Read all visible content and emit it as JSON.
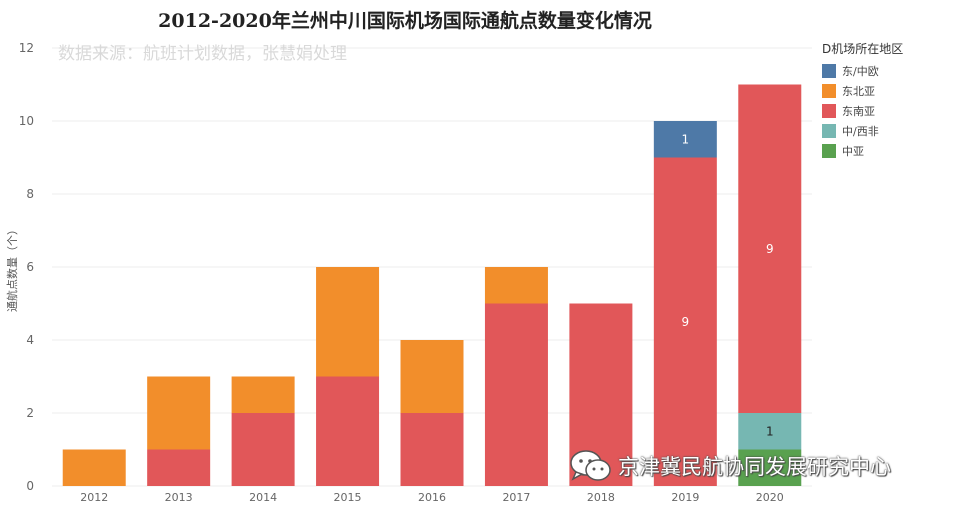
{
  "chart_data": {
    "type": "bar",
    "stacked": true,
    "title": "2012-2020年兰州中川国际机场国际通航点数量变化情况",
    "subtitle": "数据来源：航班计划数据，张慧娟处理",
    "xlabel": "",
    "ylabel": "通航点数量（个）",
    "ylim": [
      0,
      12
    ],
    "yticks": [
      0,
      2,
      4,
      6,
      8,
      10,
      12
    ],
    "grid": true,
    "legend_title": "D机场所在地区",
    "legend_position": "right",
    "categories": [
      "2012",
      "2013",
      "2014",
      "2015",
      "2016",
      "2017",
      "2018",
      "2019",
      "2020"
    ],
    "series": [
      {
        "name": "中亚",
        "color": "#59a14f",
        "values": [
          0,
          0,
          0,
          0,
          0,
          0,
          0,
          0,
          1
        ]
      },
      {
        "name": "中/西非",
        "color": "#76b7b2",
        "values": [
          0,
          0,
          0,
          0,
          0,
          0,
          0,
          0,
          1
        ]
      },
      {
        "name": "东南亚",
        "color": "#e15759",
        "values": [
          0,
          1,
          2,
          3,
          2,
          5,
          5,
          9,
          9
        ]
      },
      {
        "name": "东北亚",
        "color": "#f28e2b",
        "values": [
          1,
          2,
          1,
          3,
          2,
          1,
          0,
          0,
          0
        ]
      },
      {
        "name": "东/中欧",
        "color": "#4e79a7",
        "values": [
          0,
          0,
          0,
          0,
          0,
          0,
          0,
          1,
          0
        ]
      }
    ],
    "legend_order": [
      "东/中欧",
      "东北亚",
      "东南亚",
      "中/西非",
      "中亚"
    ],
    "data_labels": [
      {
        "category": "2019",
        "series": "东/中欧",
        "text": "1"
      },
      {
        "category": "2019",
        "series": "东南亚",
        "text": "9"
      },
      {
        "category": "2020",
        "series": "东南亚",
        "text": "9"
      },
      {
        "category": "2020",
        "series": "中/西非",
        "text": "1"
      }
    ]
  },
  "watermark": {
    "text": "京津冀民航协同发展研究中心",
    "icon": "wechat-icon"
  }
}
